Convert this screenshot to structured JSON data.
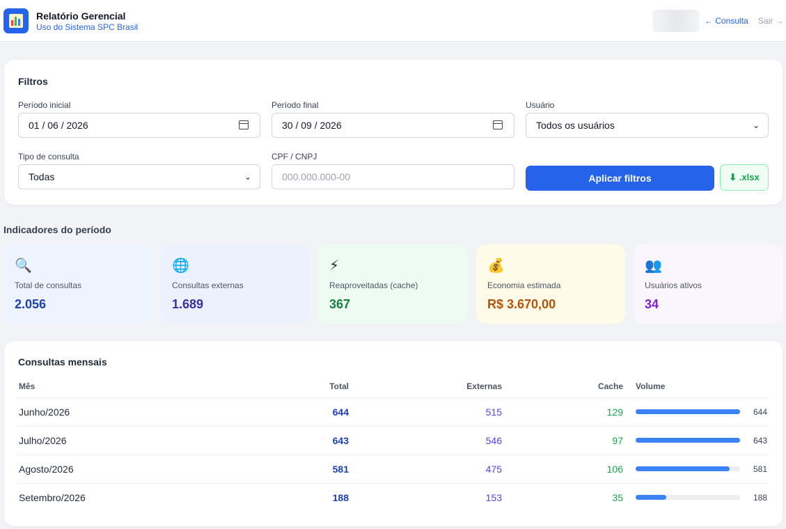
{
  "header": {
    "title": "Relatório Gerencial",
    "subtitle": "Uso do Sistema SPC Brasil",
    "nav_consulta": "← Consulta",
    "nav_sair": "Sair →",
    "logo_icon": "bar-chart-icon"
  },
  "filters": {
    "title": "Filtros",
    "period_start_label": "Período inicial",
    "period_start_value": "01 / 06 / 2026",
    "period_end_label": "Período final",
    "period_end_value": "30 / 09 / 2026",
    "user_label": "Usuário",
    "user_value": "Todos os usuários",
    "type_label": "Tipo de consulta",
    "type_value": "Todas",
    "doc_label": "CPF / CNPJ",
    "doc_placeholder": "000.000.000-00",
    "apply_label": "Aplicar filtros",
    "export_label": "⬇ .xlsx"
  },
  "indicators": {
    "title": "Indicadores do período",
    "cards": [
      {
        "icon": "🔍",
        "icon_name": "magnifier-icon",
        "label": "Total de consultas",
        "value": "2.056",
        "bg": "#eef4ff",
        "color": "#1e40af"
      },
      {
        "icon": "🌐",
        "icon_name": "globe-icon",
        "label": "Consultas externas",
        "value": "1.689",
        "bg": "#edf0fd",
        "color": "#3730a3"
      },
      {
        "icon": "⚡",
        "icon_name": "lightning-icon",
        "label": "Reaproveitadas (cache)",
        "value": "367",
        "bg": "#edfbf3",
        "color": "#15803d"
      },
      {
        "icon": "💰",
        "icon_name": "money-bag-icon",
        "label": "Economia estimada",
        "value": "R$ 3.670,00",
        "bg": "#fefbe8",
        "color": "#b45309"
      },
      {
        "icon": "👥",
        "icon_name": "users-icon",
        "label": "Usuários ativos",
        "value": "34",
        "bg": "#fbf5fe",
        "color": "#7e22ce"
      }
    ]
  },
  "monthly": {
    "title": "Consultas mensais",
    "headers": {
      "month": "Mês",
      "total": "Total",
      "external": "Externas",
      "cache": "Cache",
      "volume": "Volume"
    },
    "max_volume": 644,
    "rows": [
      {
        "month": "Junho/2026",
        "total": "644",
        "external": "515",
        "cache": "129",
        "volume": 644
      },
      {
        "month": "Julho/2026",
        "total": "643",
        "external": "546",
        "cache": "97",
        "volume": 643
      },
      {
        "month": "Agosto/2026",
        "total": "581",
        "external": "475",
        "cache": "106",
        "volume": 581
      },
      {
        "month": "Setembro/2026",
        "total": "188",
        "external": "153",
        "cache": "35",
        "volume": 188
      }
    ]
  }
}
